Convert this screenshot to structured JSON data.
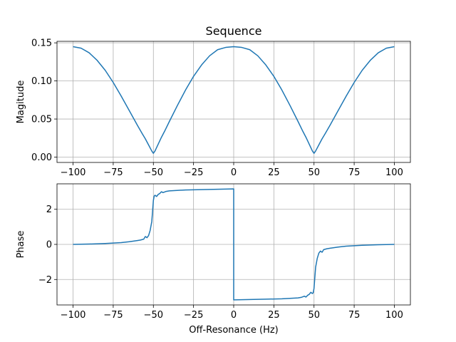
{
  "chart_data": [
    {
      "type": "line",
      "title": "Sequence",
      "xlabel": "",
      "ylabel": "Magitude",
      "xlim": [
        -110,
        110
      ],
      "ylim": [
        -0.007,
        0.152
      ],
      "xticks": [
        -100,
        -75,
        -50,
        -25,
        0,
        25,
        50,
        75,
        100
      ],
      "xtick_labels": [
        "−100",
        "−75",
        "−50",
        "−25",
        "0",
        "25",
        "50",
        "75",
        "100"
      ],
      "yticks": [
        0.0,
        0.05,
        0.1,
        0.15
      ],
      "ytick_labels": [
        "0.00",
        "0.05",
        "0.10",
        "0.15"
      ],
      "grid": true,
      "series": [
        {
          "color": "#1f77b4",
          "x": [
            -100,
            -95,
            -90,
            -85,
            -80,
            -75,
            -70,
            -65,
            -60,
            -57,
            -55,
            -53,
            -51,
            -50,
            -49,
            -47,
            -45,
            -43,
            -40,
            -35,
            -30,
            -25,
            -20,
            -15,
            -10,
            -5,
            0,
            5,
            10,
            15,
            20,
            25,
            30,
            35,
            40,
            43,
            45,
            47,
            49,
            50,
            51,
            53,
            55,
            57,
            60,
            65,
            70,
            75,
            80,
            85,
            90,
            95,
            100
          ],
          "y": [
            0.145,
            0.143,
            0.137,
            0.127,
            0.114,
            0.098,
            0.08,
            0.061,
            0.042,
            0.031,
            0.024,
            0.016,
            0.008,
            0.005,
            0.008,
            0.017,
            0.026,
            0.034,
            0.047,
            0.068,
            0.088,
            0.106,
            0.121,
            0.133,
            0.141,
            0.144,
            0.145,
            0.144,
            0.141,
            0.133,
            0.121,
            0.106,
            0.088,
            0.068,
            0.047,
            0.034,
            0.026,
            0.017,
            0.008,
            0.005,
            0.008,
            0.016,
            0.024,
            0.031,
            0.042,
            0.061,
            0.08,
            0.098,
            0.114,
            0.127,
            0.137,
            0.143,
            0.145
          ]
        }
      ]
    },
    {
      "type": "line",
      "title": "",
      "xlabel": "Off-Resonance (Hz)",
      "ylabel": "Phase",
      "xlim": [
        -110,
        110
      ],
      "ylim": [
        -3.45,
        3.45
      ],
      "xticks": [
        -100,
        -75,
        -50,
        -25,
        0,
        25,
        50,
        75,
        100
      ],
      "xtick_labels": [
        "−100",
        "−75",
        "−50",
        "−25",
        "0",
        "25",
        "50",
        "75",
        "100"
      ],
      "yticks": [
        -2,
        0,
        2
      ],
      "ytick_labels": [
        "−2",
        "0",
        "2"
      ],
      "grid": true,
      "series": [
        {
          "color": "#1f77b4",
          "x": [
            -100,
            -90,
            -80,
            -70,
            -65,
            -60,
            -58,
            -56,
            -55,
            -54,
            -53,
            -52,
            -51,
            -50.5,
            -50,
            -49.5,
            -49,
            -48,
            -47,
            -46,
            -45,
            -44,
            -42,
            -40,
            -30,
            -20,
            -10,
            0,
            0,
            10,
            20,
            30,
            40,
            42,
            44,
            45,
            46,
            47,
            48,
            49,
            49.5,
            50,
            50.5,
            51,
            52,
            53,
            54,
            55,
            56,
            58,
            60,
            65,
            70,
            80,
            90,
            100
          ],
          "y": [
            0.0,
            0.02,
            0.05,
            0.1,
            0.15,
            0.22,
            0.25,
            0.3,
            0.45,
            0.38,
            0.5,
            0.8,
            1.3,
            1.9,
            2.5,
            2.75,
            2.8,
            2.73,
            2.85,
            2.9,
            3.0,
            2.95,
            3.02,
            3.05,
            3.1,
            3.12,
            3.14,
            3.16,
            -3.16,
            -3.14,
            -3.12,
            -3.1,
            -3.05,
            -3.02,
            -2.95,
            -3.0,
            -2.9,
            -2.85,
            -2.73,
            -2.8,
            -2.75,
            -2.5,
            -1.9,
            -1.3,
            -0.8,
            -0.5,
            -0.38,
            -0.45,
            -0.3,
            -0.25,
            -0.22,
            -0.15,
            -0.1,
            -0.05,
            -0.02,
            0.0
          ]
        }
      ]
    }
  ]
}
